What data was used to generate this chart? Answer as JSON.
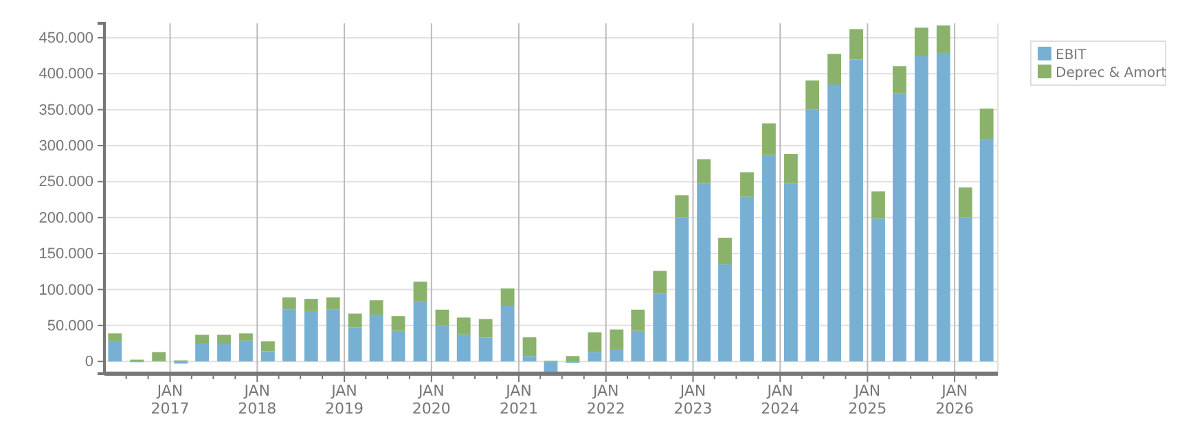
{
  "chart_data": {
    "type": "bar",
    "stacked": true,
    "grid": true,
    "legend": "top right",
    "x": [
      "2016-05-15",
      "2016-08-15",
      "2016-11-15",
      "2017-02-15",
      "2017-05-15",
      "2017-08-15",
      "2017-11-15",
      "2018-02-15",
      "2018-05-15",
      "2018-08-15",
      "2018-11-15",
      "2019-02-15",
      "2019-05-15",
      "2019-08-15",
      "2019-11-15",
      "2020-02-15",
      "2020-05-15",
      "2020-08-15",
      "2020-11-15",
      "2021-02-15",
      "2021-05-15",
      "2021-08-15",
      "2021-11-15",
      "2022-02-15",
      "2022-05-15",
      "2022-08-15",
      "2022-11-15",
      "2023-02-15",
      "2023-05-15",
      "2023-08-15",
      "2023-11-15",
      "2024-02-15",
      "2024-05-15",
      "2024-08-15",
      "2024-11-15",
      "2025-02-15",
      "2025-05-15",
      "2025-08-15",
      "2025-11-15",
      "2026-02-15",
      "2026-05-15"
    ],
    "xlim": [
      "2016-04-01",
      "2026-07-01"
    ],
    "xticks": [
      {
        "value": "2016-07-01",
        "label": null
      },
      {
        "value": "2016-10-01",
        "label": null
      },
      {
        "value": "2017-01-01",
        "label": "JAN\n2017"
      },
      {
        "value": "2017-04-01",
        "label": null
      },
      {
        "value": "2017-07-01",
        "label": null
      },
      {
        "value": "2017-10-01",
        "label": null
      },
      {
        "value": "2018-01-01",
        "label": "JAN\n2018"
      },
      {
        "value": "2018-04-01",
        "label": null
      },
      {
        "value": "2018-07-01",
        "label": null
      },
      {
        "value": "2018-10-01",
        "label": null
      },
      {
        "value": "2019-01-01",
        "label": "JAN\n2019"
      },
      {
        "value": "2019-04-01",
        "label": null
      },
      {
        "value": "2019-07-01",
        "label": null
      },
      {
        "value": "2019-10-01",
        "label": null
      },
      {
        "value": "2020-01-01",
        "label": "JAN\n2020"
      },
      {
        "value": "2020-04-01",
        "label": null
      },
      {
        "value": "2020-07-01",
        "label": null
      },
      {
        "value": "2020-10-01",
        "label": null
      },
      {
        "value": "2021-01-01",
        "label": "JAN\n2021"
      },
      {
        "value": "2021-04-01",
        "label": null
      },
      {
        "value": "2021-07-01",
        "label": null
      },
      {
        "value": "2021-10-01",
        "label": null
      },
      {
        "value": "2022-01-01",
        "label": "JAN\n2022"
      },
      {
        "value": "2022-04-01",
        "label": null
      },
      {
        "value": "2022-07-01",
        "label": null
      },
      {
        "value": "2022-10-01",
        "label": null
      },
      {
        "value": "2023-01-01",
        "label": "JAN\n2023"
      },
      {
        "value": "2023-04-01",
        "label": null
      },
      {
        "value": "2023-07-01",
        "label": null
      },
      {
        "value": "2023-10-01",
        "label": null
      },
      {
        "value": "2024-01-01",
        "label": "JAN\n2024"
      },
      {
        "value": "2024-04-01",
        "label": null
      },
      {
        "value": "2024-07-01",
        "label": null
      },
      {
        "value": "2024-10-01",
        "label": null
      },
      {
        "value": "2025-01-01",
        "label": "JAN\n2025"
      },
      {
        "value": "2025-04-01",
        "label": null
      },
      {
        "value": "2025-07-01",
        "label": null
      },
      {
        "value": "2025-10-01",
        "label": null
      },
      {
        "value": "2026-01-01",
        "label": "JAN\n2026"
      },
      {
        "value": "2026-04-01",
        "label": null
      }
    ],
    "ylim": [
      -17000,
      470000
    ],
    "yticks": [
      0,
      {
        "value": 50000,
        "label": "50.000"
      },
      {
        "value": 100000,
        "label": "100.000"
      },
      {
        "value": 150000,
        "label": "150.000"
      },
      {
        "value": 200000,
        "label": "200.000"
      },
      {
        "value": 250000,
        "label": "250.000"
      },
      {
        "value": 300000,
        "label": "300.000"
      },
      {
        "value": 350000,
        "label": "350.000"
      },
      {
        "value": 400000,
        "label": "400.000"
      },
      {
        "value": 450000,
        "label": "450.000"
      }
    ],
    "series": [
      {
        "name": "EBIT",
        "color": "#78b0d4",
        "values": [
          28000,
          -1000,
          1000,
          -3000,
          25000,
          25000,
          29000,
          14000,
          72000,
          70000,
          72000,
          47500,
          65000,
          42500,
          83000,
          50000,
          37000,
          33000,
          77500,
          7500,
          -15000,
          -2000,
          13000,
          16500,
          42500,
          94000,
          200000,
          248000,
          135000,
          229000,
          287000,
          248000,
          350000,
          385000,
          420000,
          198500,
          372000,
          425000,
          429000,
          200000,
          309500
        ]
      },
      {
        "name": "Deprec & Amort",
        "color": "#8ab26a",
        "values": [
          11000,
          2500,
          12000,
          1500,
          12000,
          12000,
          10000,
          14000,
          17000,
          17000,
          17000,
          19000,
          20000,
          20500,
          28000,
          22000,
          24000,
          26000,
          24000,
          26000,
          1000,
          7500,
          27500,
          28000,
          29500,
          32000,
          31000,
          33000,
          37000,
          34000,
          44000,
          40500,
          40500,
          42500,
          42000,
          38000,
          38500,
          39000,
          38000,
          42000,
          42000
        ]
      }
    ]
  }
}
